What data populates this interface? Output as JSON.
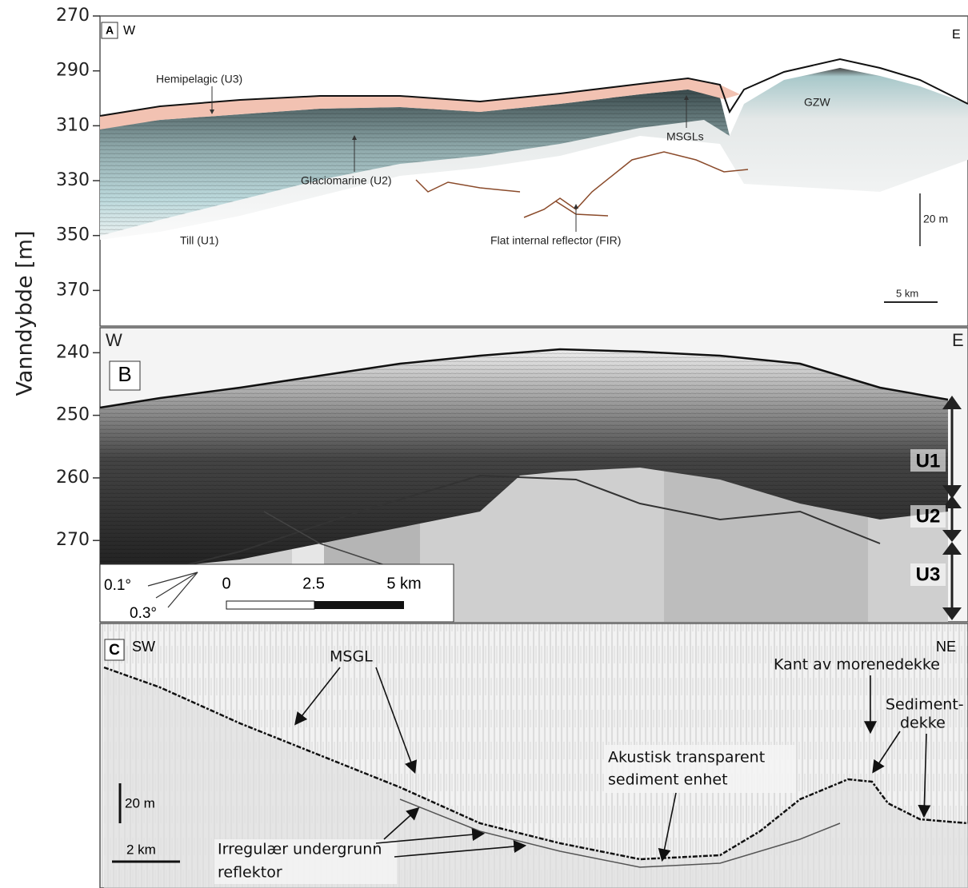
{
  "y_axis_label": "Vanndybde [m]",
  "panels": [
    {
      "label": "A",
      "left": "W",
      "right": "E",
      "ylim": [
        270,
        383
      ],
      "yticks": [
        270,
        290,
        310,
        330,
        350,
        370
      ],
      "annotations": [
        "Hemipelagic (U3)",
        "GZW",
        "Glaciomarine (U2)",
        "MSGLs",
        "Till  (U1)",
        "Flat internal reflector (FIR)"
      ],
      "scale_vertical": "20 m",
      "scale_horizontal": "5 km"
    },
    {
      "label": "B",
      "left": "W",
      "right": "E",
      "ylim": [
        236,
        283
      ],
      "yticks": [
        240,
        250,
        260,
        270
      ],
      "units": [
        "U1",
        "U2",
        "U3"
      ],
      "scale_ticks": [
        "0",
        "2.5",
        "5 km"
      ],
      "angles": [
        "0.1°",
        "0.3°"
      ]
    },
    {
      "label": "C",
      "left": "SW",
      "right": "NE",
      "annotations": [
        "MSGL",
        "Kant av morenedekke",
        "Sediment-",
        "dekke",
        "Akustisk transparent",
        "sediment enhet",
        "Irregulær undergrunn",
        "reflektor"
      ],
      "scale_vertical": "20 m",
      "scale_horizontal": "2 km"
    }
  ]
}
